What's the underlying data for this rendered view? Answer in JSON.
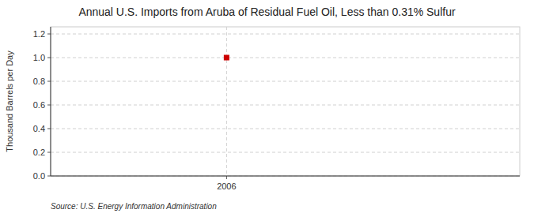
{
  "chart_data": {
    "type": "scatter",
    "title": "Annual U.S. Imports from Aruba of Residual Fuel Oil, Less than 0.31% Sulfur",
    "ylabel": "Thousand Barrels per Day",
    "source": "Source: U.S. Energy Information Administration",
    "x": [
      2006
    ],
    "values": [
      1.0
    ],
    "color": "#CC0000",
    "marker": "square",
    "line_style": "none",
    "xlim": [
      2005.4,
      2007.0
    ],
    "xticks": [
      2006
    ],
    "ylim": [
      0.0,
      1.26
    ],
    "yticks": [
      {
        "value": 0.0,
        "label": "0.0"
      },
      0.2,
      0.4,
      0.6,
      0.8,
      {
        "value": 1.0,
        "label": "1.0"
      },
      1.2
    ],
    "grid": true
  }
}
